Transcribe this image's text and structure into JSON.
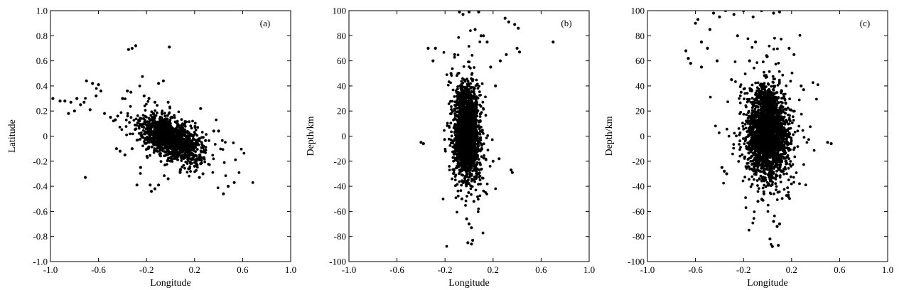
{
  "chart_data": [
    {
      "type": "scatter",
      "tag": "(a)",
      "xlabel": "Longitude",
      "ylabel": "Latitude",
      "xlim": [
        -1.0,
        1.0
      ],
      "ylim": [
        -1.0,
        1.0
      ],
      "xticks": [
        -1.0,
        -0.6,
        -0.2,
        0.2,
        0.6,
        1.0
      ],
      "xtick_labels": [
        "-1.0",
        "-0.6",
        "-0.2",
        "0.2",
        "0.6",
        "1.0"
      ],
      "yticks": [
        1.0,
        0.8,
        0.6,
        0.4,
        0.2,
        0,
        -0.2,
        -0.4,
        -0.6,
        -0.8,
        -1.0
      ],
      "ytick_labels": [
        "1.0",
        "0.8",
        "0.6",
        "0.4",
        "0.2",
        "0",
        "-0.2",
        "-0.4",
        "-0.6",
        "-0.8",
        "-1.0"
      ],
      "grid": false,
      "points": [
        [
          -0.35,
          0.69
        ],
        [
          -0.32,
          0.7
        ],
        [
          -0.29,
          0.72
        ],
        [
          -0.01,
          0.71
        ],
        [
          -0.7,
          0.44
        ],
        [
          -0.65,
          0.42
        ],
        [
          -0.6,
          0.41
        ],
        [
          -0.58,
          0.36
        ],
        [
          -0.62,
          0.32
        ],
        [
          -0.98,
          0.3
        ],
        [
          -0.92,
          0.28
        ],
        [
          -0.88,
          0.28
        ],
        [
          -0.83,
          0.27
        ],
        [
          -0.78,
          0.3
        ],
        [
          -0.75,
          0.25
        ],
        [
          -0.72,
          0.27
        ],
        [
          -0.8,
          0.2
        ],
        [
          -0.85,
          0.18
        ],
        [
          -0.67,
          0.21
        ],
        [
          -0.55,
          0.18
        ],
        [
          -0.36,
          0.36
        ],
        [
          -0.33,
          0.35
        ],
        [
          -0.06,
          0.44
        ],
        [
          -0.1,
          0.42
        ],
        [
          -0.4,
          0.3
        ],
        [
          -0.22,
          0.32
        ],
        [
          -0.18,
          0.3
        ],
        [
          -0.13,
          0.27
        ],
        [
          -0.02,
          0.27
        ],
        [
          -0.71,
          -0.33
        ],
        [
          -0.28,
          -0.39
        ],
        [
          -0.17,
          -0.39
        ],
        [
          -0.13,
          -0.42
        ],
        [
          -0.1,
          -0.39
        ],
        [
          -0.16,
          -0.44
        ],
        [
          -0.02,
          -0.34
        ],
        [
          0.08,
          -0.29
        ],
        [
          0.15,
          -0.26
        ],
        [
          0.2,
          -0.24
        ],
        [
          0.24,
          -0.33
        ],
        [
          0.27,
          -0.3
        ],
        [
          0.44,
          -0.46
        ],
        [
          0.48,
          -0.4
        ],
        [
          0.53,
          -0.37
        ],
        [
          0.4,
          0.04
        ],
        [
          0.36,
          0.04
        ],
        [
          0.25,
          0.22
        ],
        [
          -0.45,
          -0.1
        ],
        [
          -0.42,
          -0.12
        ],
        [
          -0.38,
          -0.15
        ],
        [
          -0.32,
          -0.1
        ],
        [
          -0.25,
          -0.25
        ],
        [
          0.18,
          -0.15
        ],
        [
          0.22,
          -0.18
        ],
        [
          0.25,
          -0.22
        ],
        [
          -0.5,
          0.15
        ],
        [
          -0.46,
          0.13
        ],
        [
          -0.44,
          0.16
        ]
      ],
      "cluster": {
        "center": [
          0.0,
          -0.02
        ],
        "spread": [
          0.12,
          0.07
        ],
        "count": 1500,
        "tilt": -0.35
      }
    },
    {
      "type": "scatter",
      "tag": "(b)",
      "xlabel": "Longitude",
      "ylabel": "Depth/km",
      "xlim": [
        -1.0,
        1.0
      ],
      "ylim": [
        -100,
        100
      ],
      "xticks": [
        -1.0,
        -0.6,
        -0.2,
        0.2,
        0.6,
        1.0
      ],
      "xtick_labels": [
        "-1.0",
        "-0.6",
        "-0.2",
        "0.2",
        "0.6",
        "1.0"
      ],
      "yticks": [
        100,
        80,
        60,
        40,
        20,
        0,
        -20,
        -40,
        -60,
        -80,
        -100
      ],
      "ytick_labels": [
        "100",
        "80",
        "60",
        "40",
        "20",
        "0",
        "-20",
        "-40",
        "-60",
        "-80",
        "-100"
      ],
      "grid": false,
      "points": [
        [
          -0.4,
          -5
        ],
        [
          -0.38,
          -6
        ],
        [
          -0.34,
          70
        ],
        [
          -0.28,
          70
        ],
        [
          -0.3,
          60
        ],
        [
          -0.08,
          99
        ],
        [
          -0.05,
          97
        ],
        [
          0.0,
          99
        ],
        [
          0.08,
          99
        ],
        [
          0.05,
          85
        ],
        [
          0.12,
          80
        ],
        [
          0.3,
          94
        ],
        [
          0.33,
          91
        ],
        [
          0.38,
          89
        ],
        [
          0.41,
          86
        ],
        [
          0.4,
          70
        ],
        [
          0.42,
          67
        ],
        [
          0.31,
          65
        ],
        [
          0.26,
          60
        ],
        [
          0.7,
          75
        ],
        [
          0.35,
          -27
        ],
        [
          0.36,
          -29
        ],
        [
          0.2,
          -20
        ],
        [
          0.25,
          -18
        ],
        [
          -0.02,
          -66
        ],
        [
          0.0,
          -70
        ],
        [
          0.02,
          -73
        ],
        [
          0.03,
          -83
        ],
        [
          -0.01,
          -85
        ],
        [
          0.02,
          -86
        ],
        [
          -0.06,
          -50
        ],
        [
          0.04,
          -52
        ],
        [
          0.1,
          80
        ],
        [
          0.18,
          55
        ],
        [
          0.22,
          40
        ],
        [
          0.15,
          75
        ],
        [
          -0.15,
          50
        ],
        [
          -0.12,
          65
        ]
      ],
      "cluster": {
        "center": [
          -0.02,
          2
        ],
        "spread": [
          0.05,
          17
        ],
        "count": 2000,
        "tilt": 0
      }
    },
    {
      "type": "scatter",
      "tag": "(c)",
      "xlabel": "Longitude",
      "ylabel": "Depth/km",
      "xlim": [
        -1.0,
        1.0
      ],
      "ylim": [
        -100,
        100
      ],
      "xticks": [
        -1.0,
        -0.6,
        -0.2,
        0.2,
        0.6,
        1.0
      ],
      "xtick_labels": [
        "-1.0",
        "-0.6",
        "-0.2",
        "0.2",
        "0.6",
        "1.0"
      ],
      "yticks": [
        100,
        80,
        60,
        40,
        20,
        0,
        -20,
        -40,
        -60,
        -80,
        -100
      ],
      "ytick_labels": [
        "100",
        "80",
        "60",
        "40",
        "20",
        "0",
        "-20",
        "-40",
        "-60",
        "-80",
        "-100"
      ],
      "grid": false,
      "points": [
        [
          -0.68,
          68
        ],
        [
          -0.66,
          62
        ],
        [
          -0.64,
          58
        ],
        [
          -0.6,
          90
        ],
        [
          -0.58,
          93
        ],
        [
          -0.55,
          55
        ],
        [
          -0.45,
          98
        ],
        [
          -0.4,
          95
        ],
        [
          -0.35,
          100
        ],
        [
          -0.28,
          97
        ],
        [
          -0.2,
          100
        ],
        [
          -0.12,
          95
        ],
        [
          -0.05,
          100
        ],
        [
          0.05,
          98
        ],
        [
          0.1,
          99
        ],
        [
          0.18,
          70
        ],
        [
          0.22,
          65
        ],
        [
          0.28,
          40
        ],
        [
          0.3,
          37
        ],
        [
          -0.38,
          -25
        ],
        [
          -0.36,
          -28
        ],
        [
          -0.34,
          -30
        ],
        [
          0.5,
          -5
        ],
        [
          0.53,
          -6
        ],
        [
          0.05,
          -68
        ],
        [
          0.08,
          -72
        ],
        [
          0.1,
          -70
        ],
        [
          0.02,
          -82
        ],
        [
          0.04,
          -88
        ],
        [
          0.09,
          -87
        ],
        [
          -0.08,
          -52
        ],
        [
          -0.03,
          -46
        ],
        [
          -0.55,
          75
        ],
        [
          -0.5,
          70
        ],
        [
          -0.48,
          85
        ],
        [
          -0.42,
          60
        ],
        [
          -0.3,
          45
        ],
        [
          -0.25,
          80
        ],
        [
          -0.22,
          35
        ],
        [
          -0.1,
          75
        ],
        [
          -0.15,
          60
        ]
      ],
      "cluster": {
        "center": [
          0.0,
          2
        ],
        "spread": [
          0.08,
          17
        ],
        "count": 2400,
        "tilt": 0
      }
    }
  ]
}
